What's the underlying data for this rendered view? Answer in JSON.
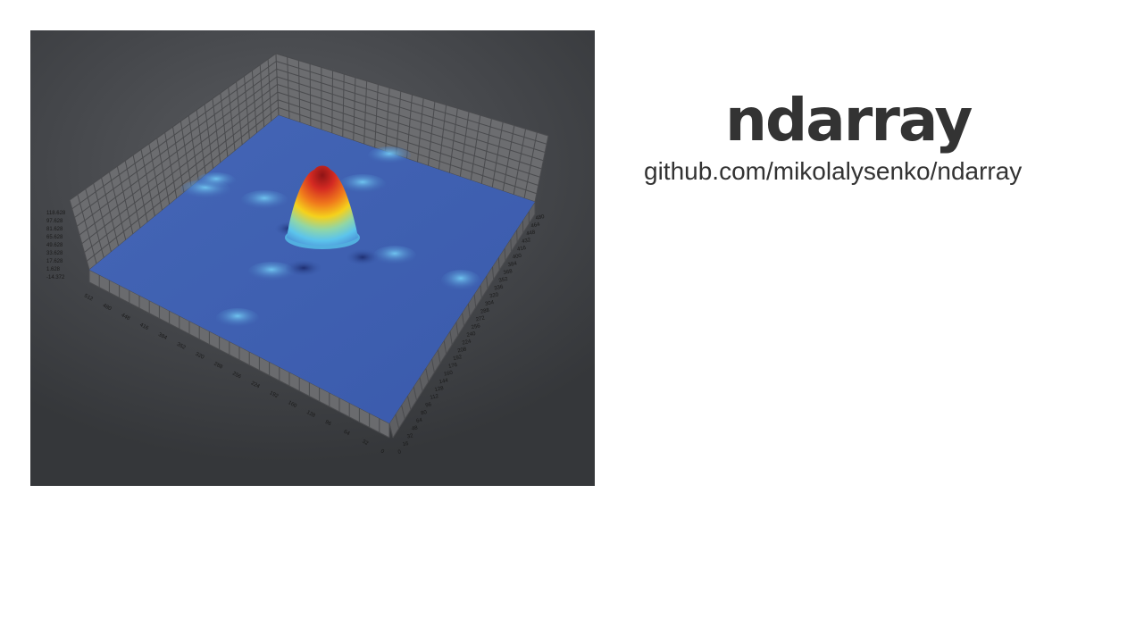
{
  "slide": {
    "title": "ndarray",
    "url": "github.com/mikolalysenko/ndarray"
  },
  "plot": {
    "image": "3d-surface-plot",
    "z_ticks": [
      "118.628",
      "97.628",
      "81.628",
      "65.628",
      "49.628",
      "33.628",
      "17.628",
      "1.628",
      "-14.372"
    ],
    "left_ticks": [
      "512",
      "480",
      "448",
      "416",
      "384",
      "352",
      "320",
      "288",
      "256",
      "224",
      "192",
      "160",
      "128",
      "96",
      "64",
      "32",
      "0"
    ],
    "right_ticks": [
      "480",
      "464",
      "448",
      "432",
      "416",
      "400",
      "384",
      "368",
      "352",
      "336",
      "320",
      "304",
      "288",
      "272",
      "256",
      "240",
      "224",
      "208",
      "192",
      "176",
      "160",
      "144",
      "128",
      "112",
      "96",
      "80",
      "64",
      "48",
      "32",
      "16",
      "0"
    ],
    "colors": {
      "surface": "#3c5fb0",
      "wall": "#6c6d70",
      "wall_grid": "#4a4b4e",
      "peak_top": "#c0282a",
      "peak_mid": "#f2d21a",
      "peak_base": "#6ac8ec"
    }
  }
}
